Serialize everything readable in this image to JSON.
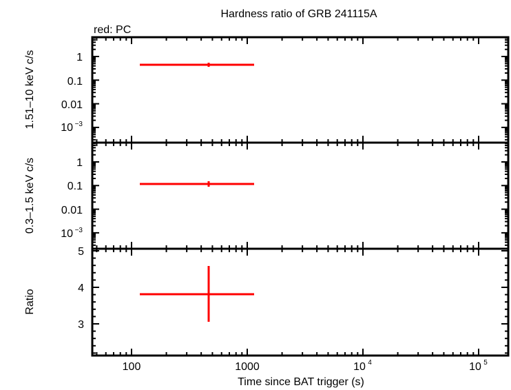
{
  "title": "Hardness ratio of GRB 241115A",
  "legend_note": "red: PC",
  "colors": {
    "series": "#ff0000",
    "axes": "#000000",
    "background": "#ffffff"
  },
  "x_axis": {
    "label": "Time since BAT trigger (s)",
    "scale": "log",
    "range": [
      46,
      190000
    ],
    "ticks": [
      {
        "value": 100,
        "label": "100"
      },
      {
        "value": 1000,
        "label": "1000"
      },
      {
        "value": 10000,
        "label": "10",
        "sup": "4"
      },
      {
        "value": 100000,
        "label": "10",
        "sup": "5"
      }
    ]
  },
  "panels": [
    {
      "name": "hard-band",
      "ylabel": "1.51–10 keV c/s",
      "scale": "log",
      "ticks": [
        {
          "label": "1"
        },
        {
          "label": "0.1"
        },
        {
          "label": "0.01"
        },
        {
          "label": "10",
          "sup": "−3"
        }
      ]
    },
    {
      "name": "soft-band",
      "ylabel": "0.3–1.5 keV c/s",
      "scale": "log",
      "ticks": [
        {
          "label": "1"
        },
        {
          "label": "0.1"
        },
        {
          "label": "0.01"
        },
        {
          "label": "10",
          "sup": "−3"
        }
      ]
    },
    {
      "name": "ratio",
      "ylabel": "Ratio",
      "scale": "linear",
      "ticks": [
        {
          "label": "5"
        },
        {
          "label": "4"
        },
        {
          "label": "3"
        }
      ]
    }
  ],
  "chart_data": [
    {
      "type": "scatter",
      "title": "Hardness ratio of GRB 241115A",
      "panel": "1.51-10 keV count rate",
      "xlabel": "Time since BAT trigger (s)",
      "ylabel": "1.51–10 keV c/s",
      "xscale": "log",
      "yscale": "log",
      "xlim": [
        46,
        190000
      ],
      "ylim": [
        0.0003,
        5
      ],
      "series": [
        {
          "name": "PC",
          "color": "#ff0000",
          "points": [
            {
              "x": 450,
              "x_lo": 118,
              "x_hi": 1100,
              "y": 0.45,
              "y_lo": 0.43,
              "y_hi": 0.47
            }
          ]
        }
      ]
    },
    {
      "type": "scatter",
      "panel": "0.3-1.5 keV count rate",
      "xlabel": "Time since BAT trigger (s)",
      "ylabel": "0.3–1.5 keV c/s",
      "xscale": "log",
      "yscale": "log",
      "xlim": [
        46,
        190000
      ],
      "ylim": [
        0.0003,
        5
      ],
      "series": [
        {
          "name": "PC",
          "color": "#ff0000",
          "points": [
            {
              "x": 450,
              "x_lo": 118,
              "x_hi": 1100,
              "y": 0.115,
              "y_lo": 0.105,
              "y_hi": 0.13
            }
          ]
        }
      ]
    },
    {
      "type": "scatter",
      "panel": "Hardness ratio",
      "xlabel": "Time since BAT trigger (s)",
      "ylabel": "Ratio",
      "xscale": "log",
      "yscale": "linear",
      "xlim": [
        46,
        190000
      ],
      "ylim": [
        2.13,
        5.0
      ],
      "series": [
        {
          "name": "PC",
          "color": "#ff0000",
          "points": [
            {
              "x": 450,
              "x_lo": 118,
              "x_hi": 1100,
              "y": 3.81,
              "y_lo": 3.06,
              "y_hi": 4.58
            }
          ]
        }
      ]
    }
  ]
}
